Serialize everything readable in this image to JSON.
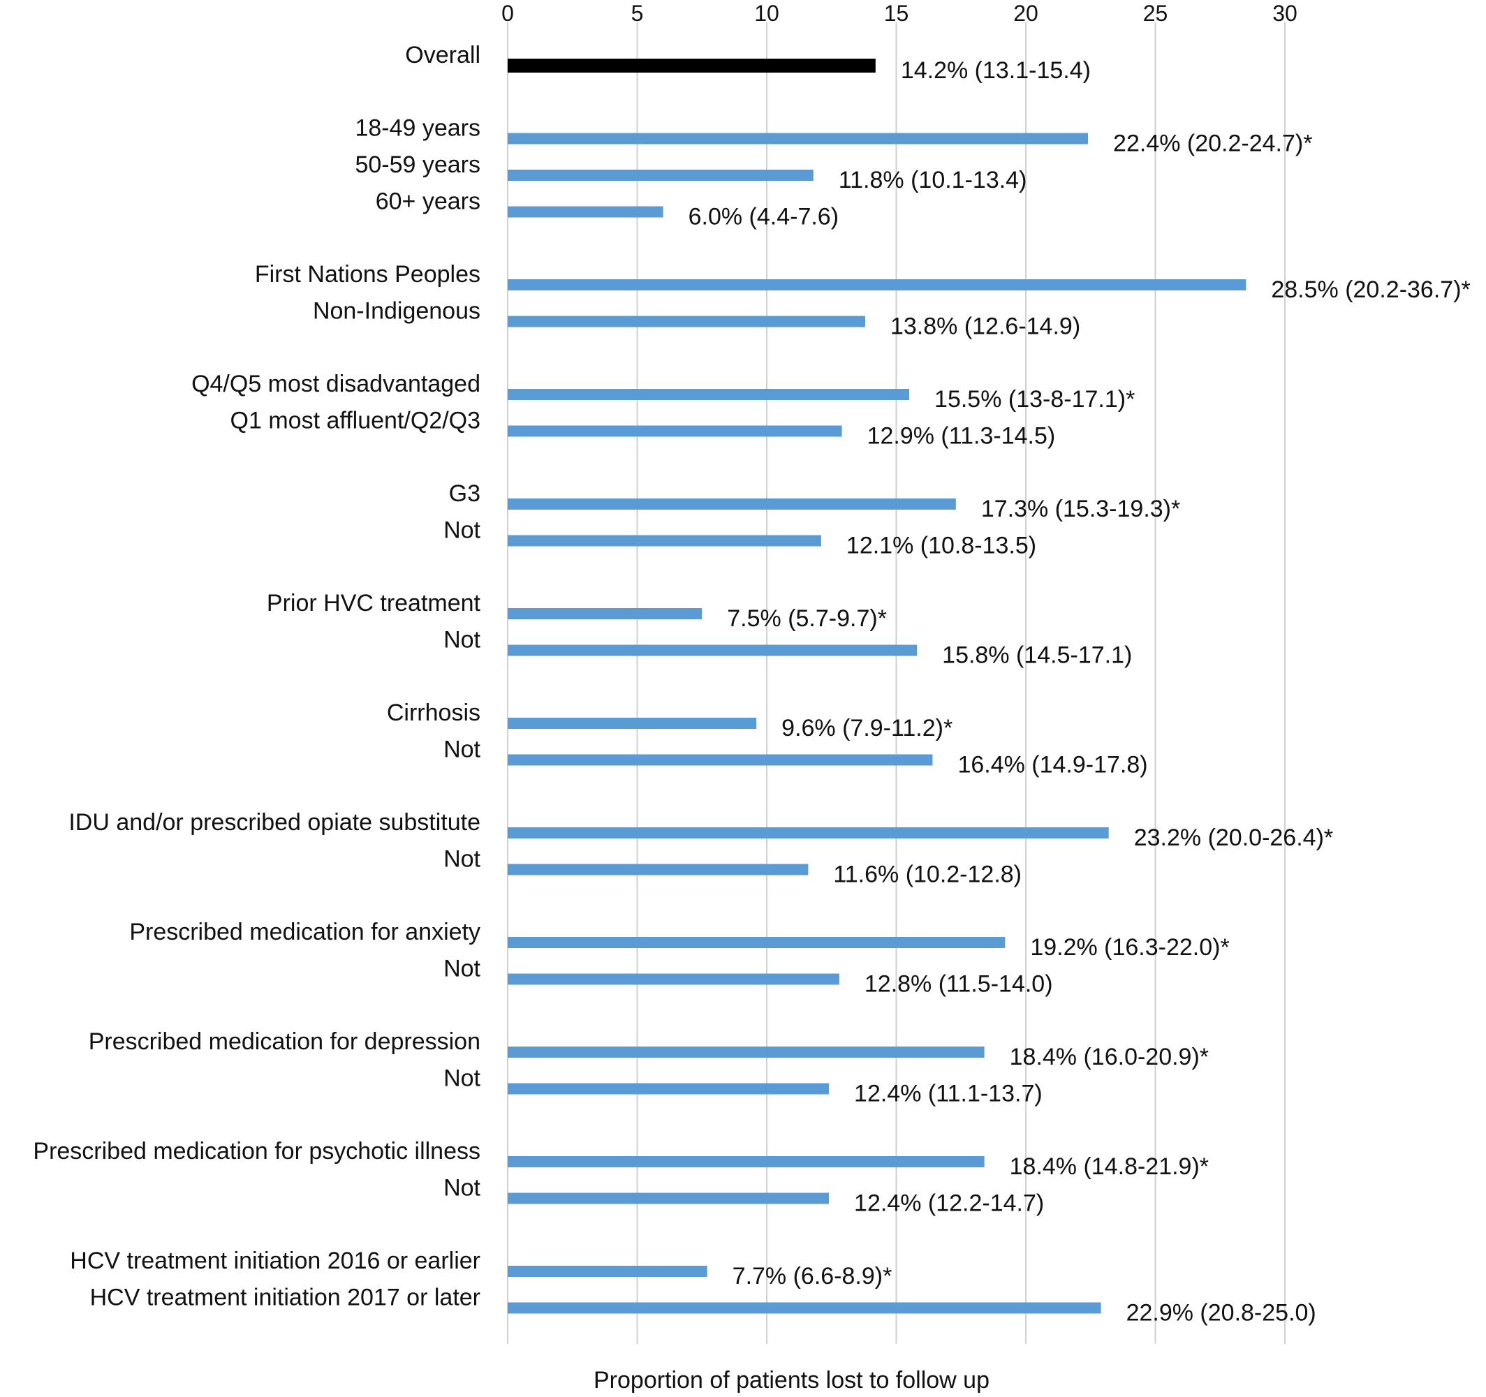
{
  "chart_data": {
    "type": "bar",
    "orientation": "horizontal",
    "title": "",
    "xlabel": "Proportion of patients lost to follow up",
    "ylabel": "",
    "xlim": [
      0,
      30
    ],
    "xticks": [
      0,
      5,
      10,
      15,
      20,
      25,
      30
    ],
    "x_axis_position": "top",
    "grid": true,
    "legend": "none",
    "colors": {
      "overall": "#000000",
      "default": "#5b9bd5"
    },
    "groups": [
      {
        "items": [
          {
            "label": "Overall",
            "value": 14.2,
            "text": "14.2% (13.1-15.4)",
            "highlight": true
          }
        ]
      },
      {
        "items": [
          {
            "label": "18-49 years",
            "value": 22.4,
            "text": "22.4% (20.2-24.7)*"
          },
          {
            "label": "50-59 years",
            "value": 11.8,
            "text": "11.8% (10.1-13.4)"
          },
          {
            "label": "60+ years",
            "value": 6.0,
            "text": "6.0% (4.4-7.6)"
          }
        ]
      },
      {
        "items": [
          {
            "label": "First Nations Peoples",
            "value": 28.5,
            "text": "28.5% (20.2-36.7)*"
          },
          {
            "label": "Non-Indigenous",
            "value": 13.8,
            "text": "13.8% (12.6-14.9)"
          }
        ]
      },
      {
        "items": [
          {
            "label": "Q4/Q5 most disadvantaged",
            "value": 15.5,
            "text": "15.5% (13-8-17.1)*"
          },
          {
            "label": "Q1 most affluent/Q2/Q3",
            "value": 12.9,
            "text": "12.9% (11.3-14.5)"
          }
        ]
      },
      {
        "items": [
          {
            "label": "G3",
            "value": 17.3,
            "text": "17.3% (15.3-19.3)*"
          },
          {
            "label": "Not",
            "value": 12.1,
            "text": "12.1% (10.8-13.5)"
          }
        ]
      },
      {
        "items": [
          {
            "label": "Prior HVC treatment",
            "value": 7.5,
            "text": "7.5% (5.7-9.7)*"
          },
          {
            "label": "Not",
            "value": 15.8,
            "text": "15.8% (14.5-17.1)"
          }
        ]
      },
      {
        "items": [
          {
            "label": "Cirrhosis",
            "value": 9.6,
            "text": "9.6% (7.9-11.2)*"
          },
          {
            "label": "Not",
            "value": 16.4,
            "text": "16.4% (14.9-17.8)"
          }
        ]
      },
      {
        "items": [
          {
            "label": "IDU and/or prescribed opiate substitute",
            "value": 23.2,
            "text": "23.2% (20.0-26.4)*"
          },
          {
            "label": "Not",
            "value": 11.6,
            "text": "11.6% (10.2-12.8)"
          }
        ]
      },
      {
        "items": [
          {
            "label": "Prescribed medication for anxiety",
            "value": 19.2,
            "text": "19.2% (16.3-22.0)*"
          },
          {
            "label": "Not",
            "value": 12.8,
            "text": "12.8% (11.5-14.0)"
          }
        ]
      },
      {
        "items": [
          {
            "label": "Prescribed medication for depression",
            "value": 18.4,
            "text": "18.4% (16.0-20.9)*"
          },
          {
            "label": "Not",
            "value": 12.4,
            "text": "12.4% (11.1-13.7)"
          }
        ]
      },
      {
        "items": [
          {
            "label": "Prescribed medication for psychotic illness",
            "value": 18.4,
            "text": "18.4% (14.8-21.9)*"
          },
          {
            "label": "Not",
            "value": 12.4,
            "text": "12.4% (12.2-14.7)"
          }
        ]
      },
      {
        "items": [
          {
            "label": "HCV treatment initiation 2016 or earlier",
            "value": 7.7,
            "text": "7.7% (6.6-8.9)*"
          },
          {
            "label": "HCV treatment initiation 2017 or later",
            "value": 22.9,
            "text": "22.9% (20.8-25.0)"
          }
        ]
      }
    ]
  }
}
